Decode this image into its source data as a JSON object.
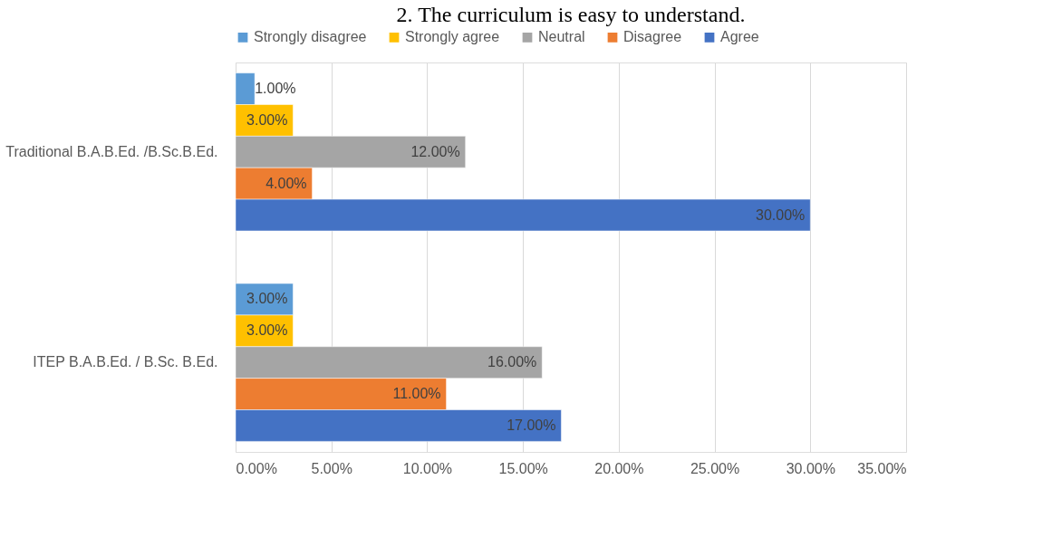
{
  "chart_data": {
    "type": "bar",
    "orientation": "horizontal",
    "title": "2. The curriculum is easy to understand.",
    "categories": [
      "Traditional B.A.B.Ed. /B.Sc.B.Ed.",
      "ITEP B.A.B.Ed. / B.Sc. B.Ed."
    ],
    "series": [
      {
        "name": "Strongly disagree",
        "color": "#5b9bd5",
        "values": [
          1,
          3
        ],
        "value_labels": [
          "1.00%",
          "3.00%"
        ]
      },
      {
        "name": "Strongly agree",
        "color": "#ffc000",
        "values": [
          3,
          3
        ],
        "value_labels": [
          "3.00%",
          "3.00%"
        ]
      },
      {
        "name": "Neutral",
        "color": "#a5a5a5",
        "values": [
          12,
          16
        ],
        "value_labels": [
          "12.00%",
          "16.00%"
        ]
      },
      {
        "name": "Disagree",
        "color": "#ed7d31",
        "values": [
          4,
          11
        ],
        "value_labels": [
          "4.00%",
          "11.00%"
        ]
      },
      {
        "name": "Agree",
        "color": "#4472c4",
        "values": [
          30,
          17
        ],
        "value_labels": [
          "30.00%",
          "17.00%"
        ]
      }
    ],
    "xlim": [
      0,
      35
    ],
    "xticks": [
      {
        "value": 0,
        "label": "0.00%"
      },
      {
        "value": 5,
        "label": "5.00%"
      },
      {
        "value": 10,
        "label": "10.00%"
      },
      {
        "value": 15,
        "label": "15.00%"
      },
      {
        "value": 20,
        "label": "20.00%"
      },
      {
        "value": 25,
        "label": "25.00%"
      },
      {
        "value": 30,
        "label": "30.00%"
      },
      {
        "value": 35,
        "label": "35.00%"
      }
    ],
    "grid": "x",
    "legend": "top"
  }
}
